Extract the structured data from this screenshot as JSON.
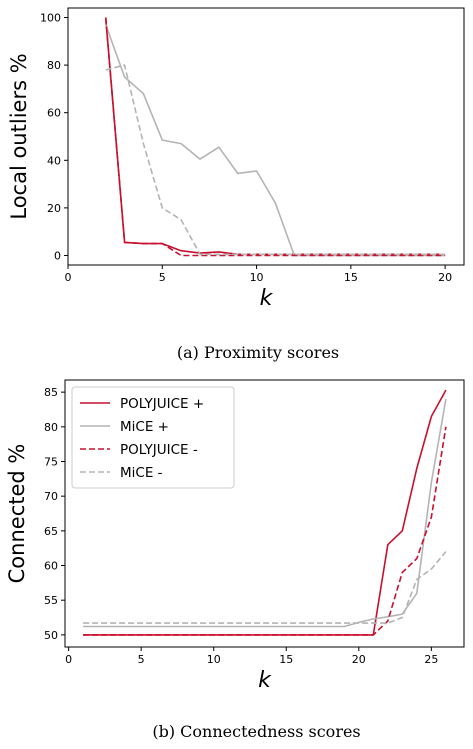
{
  "colors": {
    "polyjuice": "#c8102e",
    "mice": "#b4b4b4"
  },
  "chart_data": [
    {
      "type": "line",
      "caption": "(a) Proximity scores",
      "xlabel": "k",
      "ylabel": "Local outliers %",
      "xlim": [
        0,
        21
      ],
      "ylim": [
        -4,
        104
      ],
      "xticks": [
        0,
        5,
        10,
        15,
        20
      ],
      "yticks": [
        0,
        20,
        40,
        60,
        80,
        100
      ],
      "grid": false,
      "series": [
        {
          "style": "solid",
          "color": "#c8102e",
          "x": [
            2,
            3,
            4,
            5,
            6,
            7,
            8,
            9,
            10,
            11,
            12,
            13,
            14,
            15,
            16,
            17,
            18,
            19,
            20
          ],
          "y": [
            100,
            5.5,
            5,
            5,
            2,
            1,
            1.5,
            0.5,
            0.5,
            0.5,
            0.5,
            0.5,
            0.5,
            0.5,
            0.5,
            0.5,
            0.5,
            0.5,
            0.5
          ]
        },
        {
          "style": "solid",
          "color": "#b4b4b4",
          "x": [
            2,
            3,
            4,
            5,
            6,
            7,
            8,
            9,
            10,
            11,
            12,
            13,
            14,
            15,
            16,
            17,
            18,
            19,
            20
          ],
          "y": [
            97,
            75,
            68,
            48.5,
            47,
            40.5,
            45.5,
            34.5,
            35.5,
            22,
            0,
            0,
            0,
            0,
            0,
            0,
            0,
            0,
            0
          ]
        },
        {
          "style": "dashed",
          "color": "#c8102e",
          "x": [
            2,
            3,
            4,
            5,
            6,
            7,
            8,
            9,
            10,
            11,
            12,
            13,
            14,
            15,
            16,
            17,
            18,
            19,
            20
          ],
          "y": [
            100,
            5.5,
            5,
            5,
            0,
            0,
            0,
            0,
            0,
            0,
            0,
            0,
            0,
            0,
            0,
            0,
            0,
            0,
            0
          ]
        },
        {
          "style": "dashed",
          "color": "#b4b4b4",
          "x": [
            2,
            3,
            4,
            5,
            6,
            7,
            8,
            9,
            10,
            11,
            12,
            13,
            14,
            15,
            16,
            17,
            18,
            19,
            20
          ],
          "y": [
            78,
            80,
            47,
            20,
            15,
            0.5,
            0.5,
            0.5,
            0.5,
            0.5,
            0.5,
            0.5,
            0.5,
            0.5,
            0.5,
            0.5,
            0.5,
            0.5,
            0.5
          ]
        }
      ]
    },
    {
      "type": "line",
      "caption": "(b) Connectedness scores",
      "xlabel": "k",
      "ylabel": "Connected %",
      "xlim": [
        -0.25,
        27.25
      ],
      "ylim": [
        48.25,
        86.75
      ],
      "xticks": [
        0,
        5,
        10,
        15,
        20,
        25
      ],
      "yticks": [
        50,
        55,
        60,
        65,
        70,
        75,
        80,
        85
      ],
      "grid": false,
      "legend_position": "top-left",
      "series": [
        {
          "name": "POLYJUICE +",
          "style": "solid",
          "color": "#c8102e",
          "x": [
            1,
            21,
            22,
            23,
            24,
            25,
            26
          ],
          "y": [
            50,
            50,
            63,
            65,
            74,
            81.5,
            85.3
          ]
        },
        {
          "name": "MiCE +",
          "style": "solid",
          "color": "#b4b4b4",
          "x": [
            1,
            19,
            20,
            21,
            22,
            23,
            24,
            25,
            26
          ],
          "y": [
            51.2,
            51.2,
            51.8,
            52.3,
            52.6,
            53,
            56,
            72,
            84
          ]
        },
        {
          "name": "POLYJUICE -",
          "style": "dashed",
          "color": "#c8102e",
          "x": [
            1,
            21,
            22,
            23,
            24,
            25,
            26
          ],
          "y": [
            50,
            50,
            52,
            59,
            61,
            67,
            80
          ]
        },
        {
          "name": "MiCE -",
          "style": "dashed",
          "color": "#b4b4b4",
          "x": [
            1,
            21,
            22,
            23,
            24,
            25,
            26
          ],
          "y": [
            51.7,
            51.7,
            51.7,
            52.5,
            58,
            59.5,
            62
          ]
        }
      ]
    }
  ]
}
